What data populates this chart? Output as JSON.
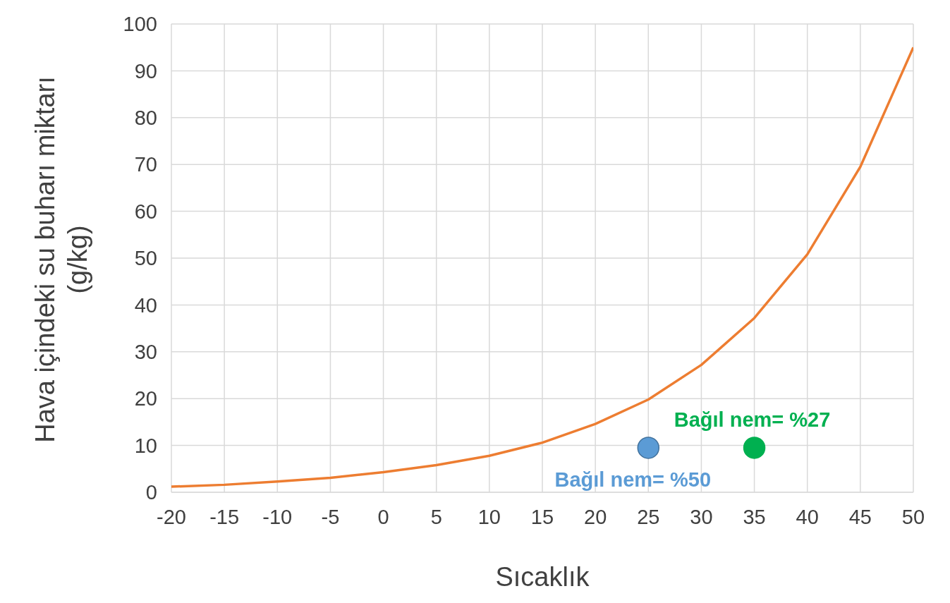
{
  "chart_data": {
    "type": "line",
    "xlabel": "Sıcaklık",
    "ylabel": "Hava içindeki su buharı miktarı (g/kg)",
    "x": [
      -20,
      -15,
      -10,
      -5,
      0,
      5,
      10,
      15,
      20,
      25,
      30,
      35,
      40,
      45,
      50
    ],
    "series": [
      {
        "color": "#ed7d31",
        "values": [
          1.2,
          1.6,
          2.3,
          3.1,
          4.3,
          5.8,
          7.8,
          10.6,
          14.6,
          19.8,
          27.2,
          37.2,
          50.8,
          69.5,
          95
        ]
      },
      {
        "type": "scatter",
        "marker": "circle",
        "color": "#5b9bd5",
        "x": [
          25
        ],
        "values": [
          9.5
        ]
      },
      {
        "type": "scatter",
        "marker": "circle",
        "color": "#00b050",
        "x": [
          35
        ],
        "values": [
          9.5
        ]
      }
    ],
    "annotations": [
      "Bağıl nem= %50",
      "Bağıl nem= %27"
    ],
    "xlim": [
      -20,
      50
    ],
    "xticks": [
      -20,
      -15,
      -10,
      -5,
      0,
      5,
      10,
      15,
      20,
      25,
      30,
      35,
      40,
      45,
      50
    ],
    "ylim": [
      0,
      100
    ],
    "yticks": [
      0,
      10,
      20,
      30,
      40,
      50,
      60,
      70,
      80,
      90,
      100
    ],
    "grid": true,
    "line_style": "solid"
  }
}
